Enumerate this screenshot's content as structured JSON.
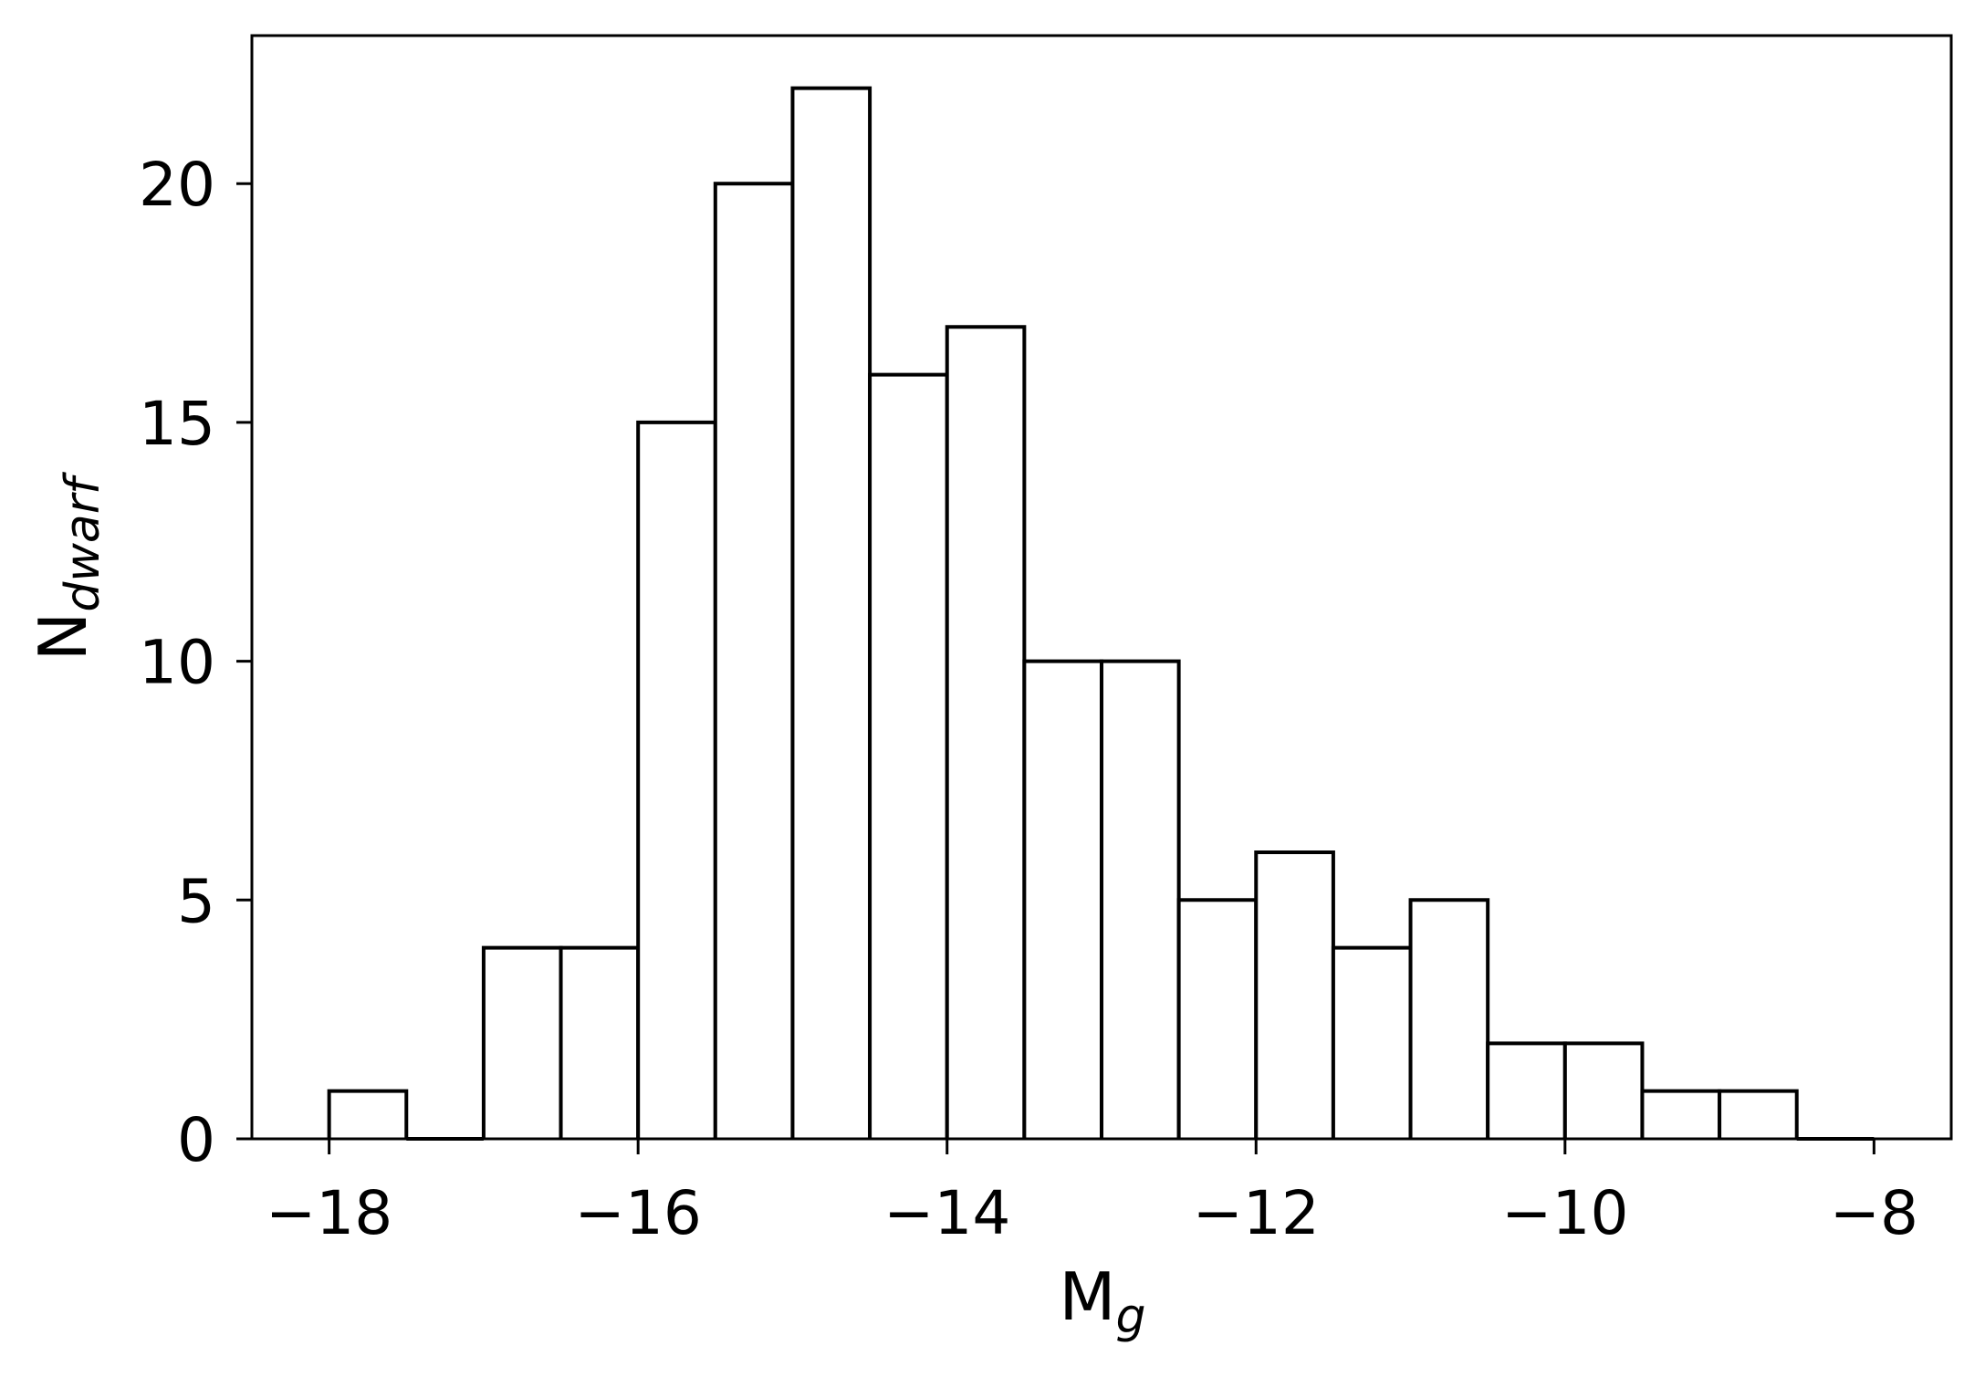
{
  "chart_data": {
    "type": "bar",
    "histogram": true,
    "bins": [
      {
        "x0": -18.0,
        "x1": -17.5,
        "count": 1
      },
      {
        "x0": -17.5,
        "x1": -17.0,
        "count": 0
      },
      {
        "x0": -17.0,
        "x1": -16.5,
        "count": 4
      },
      {
        "x0": -16.5,
        "x1": -16.0,
        "count": 4
      },
      {
        "x0": -16.0,
        "x1": -15.5,
        "count": 15
      },
      {
        "x0": -15.5,
        "x1": -15.0,
        "count": 20
      },
      {
        "x0": -15.0,
        "x1": -14.5,
        "count": 22
      },
      {
        "x0": -14.5,
        "x1": -14.0,
        "count": 16
      },
      {
        "x0": -14.0,
        "x1": -13.5,
        "count": 17
      },
      {
        "x0": -13.5,
        "x1": -13.0,
        "count": 10
      },
      {
        "x0": -13.0,
        "x1": -12.5,
        "count": 10
      },
      {
        "x0": -12.5,
        "x1": -12.0,
        "count": 5
      },
      {
        "x0": -12.0,
        "x1": -11.5,
        "count": 6
      },
      {
        "x0": -11.5,
        "x1": -11.0,
        "count": 4
      },
      {
        "x0": -11.0,
        "x1": -10.5,
        "count": 5
      },
      {
        "x0": -10.5,
        "x1": -10.0,
        "count": 2
      },
      {
        "x0": -10.0,
        "x1": -9.5,
        "count": 2
      },
      {
        "x0": -9.5,
        "x1": -9.0,
        "count": 1
      },
      {
        "x0": -9.0,
        "x1": -8.5,
        "count": 1
      },
      {
        "x0": -8.5,
        "x1": -8.0,
        "count": 0
      }
    ],
    "xlim": [
      -18.5,
      -7.5
    ],
    "ylim": [
      0,
      23.1
    ],
    "xticks": [
      -18,
      -16,
      -14,
      -12,
      -10,
      -8
    ],
    "xtick_labels": [
      "−18",
      "−16",
      "−14",
      "−12",
      "−10",
      "−8"
    ],
    "yticks": [
      0,
      5,
      10,
      15,
      20
    ],
    "ytick_labels": [
      "0",
      "5",
      "10",
      "15",
      "20"
    ],
    "xlabel": {
      "base": "M",
      "sub": "g"
    },
    "ylabel": {
      "base": "N",
      "sub": "dwarf"
    },
    "grid": false,
    "bar_fill": "#ffffff",
    "bar_edge": "#000000"
  }
}
